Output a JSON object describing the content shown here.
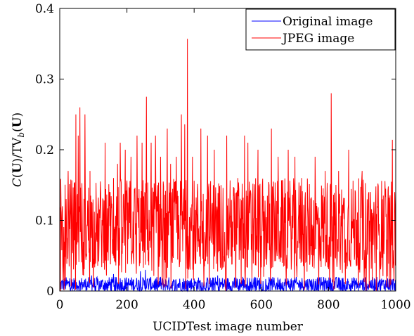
{
  "chart_data": {
    "type": "line",
    "xlabel": "UCIDTest image number",
    "ylabel": "C(U)/TV_b(U)",
    "xlim": [
      0,
      1000
    ],
    "ylim": [
      0,
      0.4
    ],
    "xticks": [
      0,
      200,
      400,
      600,
      800,
      1000
    ],
    "xtick_labels": [
      "0",
      "200",
      "400",
      "600",
      "800",
      "1000"
    ],
    "yticks": [
      0,
      0.1,
      0.2,
      0.3,
      0.4
    ],
    "ytick_labels": [
      "0",
      "0.1",
      "0.2",
      "0.3",
      "0.4"
    ],
    "grid": false,
    "legend": "top-right",
    "series": [
      {
        "name": "Original image",
        "color": "#0000ff",
        "num_points": 1000,
        "typical_range": [
          0,
          0.02
        ],
        "peaks": [
          {
            "x": 30,
            "y": 0.018
          },
          {
            "x": 95,
            "y": 0.022
          },
          {
            "x": 160,
            "y": 0.024
          },
          {
            "x": 180,
            "y": 0.018
          },
          {
            "x": 240,
            "y": 0.028
          },
          {
            "x": 255,
            "y": 0.03
          },
          {
            "x": 262,
            "y": 0.018
          },
          {
            "x": 300,
            "y": 0.02
          },
          {
            "x": 340,
            "y": 0.015
          },
          {
            "x": 380,
            "y": 0.016
          },
          {
            "x": 455,
            "y": 0.018
          },
          {
            "x": 470,
            "y": 0.022
          },
          {
            "x": 520,
            "y": 0.019
          },
          {
            "x": 545,
            "y": 0.02
          },
          {
            "x": 580,
            "y": 0.02
          },
          {
            "x": 630,
            "y": 0.016
          },
          {
            "x": 700,
            "y": 0.015
          },
          {
            "x": 760,
            "y": 0.014
          },
          {
            "x": 880,
            "y": 0.015
          },
          {
            "x": 950,
            "y": 0.013
          }
        ]
      },
      {
        "name": "JPEG image",
        "color": "#ff0000",
        "num_points": 1000,
        "typical_range": [
          0.03,
          0.16
        ],
        "peaks": [
          {
            "x": 8,
            "y": 0.12
          },
          {
            "x": 25,
            "y": 0.17
          },
          {
            "x": 48,
            "y": 0.25
          },
          {
            "x": 55,
            "y": 0.22
          },
          {
            "x": 60,
            "y": 0.26
          },
          {
            "x": 75,
            "y": 0.25
          },
          {
            "x": 90,
            "y": 0.17
          },
          {
            "x": 112,
            "y": 0.11
          },
          {
            "x": 135,
            "y": 0.21
          },
          {
            "x": 150,
            "y": 0.14
          },
          {
            "x": 160,
            "y": 0.16
          },
          {
            "x": 172,
            "y": 0.18
          },
          {
            "x": 180,
            "y": 0.21
          },
          {
            "x": 195,
            "y": 0.2
          },
          {
            "x": 212,
            "y": 0.19
          },
          {
            "x": 230,
            "y": 0.22
          },
          {
            "x": 245,
            "y": 0.21
          },
          {
            "x": 258,
            "y": 0.275
          },
          {
            "x": 272,
            "y": 0.21
          },
          {
            "x": 285,
            "y": 0.22
          },
          {
            "x": 300,
            "y": 0.19
          },
          {
            "x": 320,
            "y": 0.23
          },
          {
            "x": 330,
            "y": 0.18
          },
          {
            "x": 347,
            "y": 0.19
          },
          {
            "x": 362,
            "y": 0.25
          },
          {
            "x": 372,
            "y": 0.236
          },
          {
            "x": 380,
            "y": 0.357
          },
          {
            "x": 395,
            "y": 0.19
          },
          {
            "x": 420,
            "y": 0.23
          },
          {
            "x": 440,
            "y": 0.22
          },
          {
            "x": 460,
            "y": 0.2
          },
          {
            "x": 480,
            "y": 0.15
          },
          {
            "x": 497,
            "y": 0.22
          },
          {
            "x": 530,
            "y": 0.16
          },
          {
            "x": 550,
            "y": 0.22
          },
          {
            "x": 560,
            "y": 0.21
          },
          {
            "x": 590,
            "y": 0.2
          },
          {
            "x": 630,
            "y": 0.23
          },
          {
            "x": 650,
            "y": 0.19
          },
          {
            "x": 680,
            "y": 0.2
          },
          {
            "x": 700,
            "y": 0.19
          },
          {
            "x": 720,
            "y": 0.16
          },
          {
            "x": 760,
            "y": 0.19
          },
          {
            "x": 790,
            "y": 0.17
          },
          {
            "x": 808,
            "y": 0.28
          },
          {
            "x": 830,
            "y": 0.17
          },
          {
            "x": 860,
            "y": 0.2
          },
          {
            "x": 880,
            "y": 0.14
          },
          {
            "x": 900,
            "y": 0.17
          },
          {
            "x": 920,
            "y": 0.14
          },
          {
            "x": 945,
            "y": 0.12
          },
          {
            "x": 960,
            "y": 0.13
          },
          {
            "x": 982,
            "y": 0.12
          },
          {
            "x": 990,
            "y": 0.214
          },
          {
            "x": 997,
            "y": 0.14
          }
        ],
        "troughs": [
          {
            "x": 2,
            "y": 0.0
          },
          {
            "x": 100,
            "y": 0.005
          },
          {
            "x": 175,
            "y": 0.01
          },
          {
            "x": 310,
            "y": 0.005
          },
          {
            "x": 395,
            "y": 0.005
          },
          {
            "x": 445,
            "y": 0.01
          },
          {
            "x": 495,
            "y": 0.005
          },
          {
            "x": 540,
            "y": 0.01
          },
          {
            "x": 598,
            "y": 0.01
          },
          {
            "x": 760,
            "y": 0.02
          },
          {
            "x": 850,
            "y": 0.01
          },
          {
            "x": 930,
            "y": 0.015
          }
        ]
      }
    ]
  }
}
